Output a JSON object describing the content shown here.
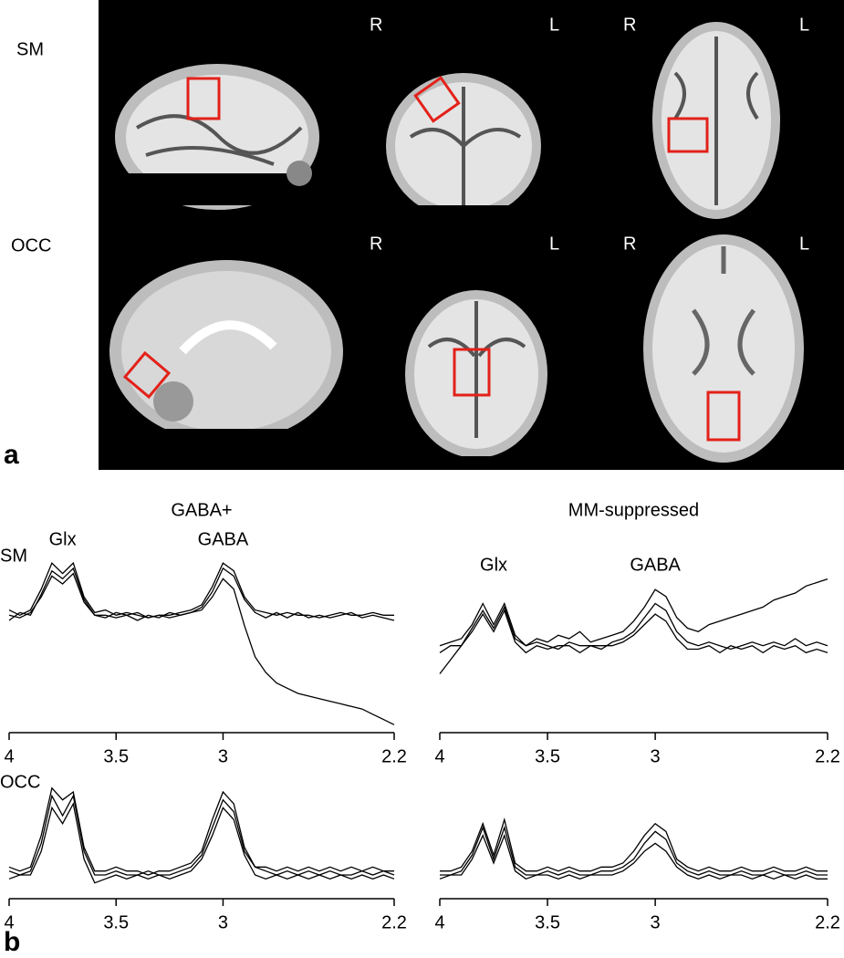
{
  "panel_a": {
    "label": "a",
    "rows": [
      "SM",
      "OCC"
    ],
    "images": [
      {},
      {
        "left": "R",
        "right": "L"
      },
      {
        "left": "R",
        "right": "L"
      },
      {},
      {
        "left": "R",
        "right": "L"
      },
      {
        "left": "R",
        "right": "L"
      }
    ]
  },
  "panel_b": {
    "label": "b",
    "rows": [
      "SM",
      "OCC"
    ]
  },
  "chart_data": [
    {
      "type": "line",
      "title": "GABA+",
      "annotations": [
        "Glx",
        "GABA"
      ],
      "x": [
        4,
        3.95,
        3.9,
        3.85,
        3.8,
        3.75,
        3.7,
        3.65,
        3.6,
        3.55,
        3.5,
        3.45,
        3.4,
        3.35,
        3.3,
        3.25,
        3.2,
        3.15,
        3.1,
        3.05,
        3,
        2.95,
        2.9,
        2.85,
        2.8,
        2.75,
        2.7,
        2.65,
        2.6,
        2.55,
        2.5,
        2.45,
        2.4,
        2.35,
        2.3,
        2.25,
        2.2
      ],
      "xlim": [
        4,
        2.2
      ],
      "xticks": [
        4,
        3.5,
        3,
        2.2
      ],
      "ylim": [
        -2.2,
        1.3
      ],
      "series": [
        {
          "color": "#000000",
          "values": [
            0.1,
            0.0,
            0.1,
            0.5,
            1.0,
            0.8,
            1.0,
            0.35,
            0.05,
            0.1,
            0.0,
            0.05,
            0.0,
            -0.05,
            0.0,
            0.0,
            0.05,
            0.1,
            0.2,
            0.55,
            1.0,
            0.85,
            0.35,
            0.1,
            0.05,
            0.0,
            0.05,
            0.0,
            0.0,
            -0.05,
            0.0,
            0.05,
            0.0,
            0.0,
            0.05,
            0.0,
            0.0
          ]
        },
        {
          "color": "#000000",
          "values": [
            -0.1,
            0.05,
            0.0,
            0.4,
            0.85,
            0.7,
            0.9,
            0.3,
            0.0,
            -0.05,
            0.05,
            0.0,
            -0.1,
            0.0,
            -0.05,
            0.05,
            0.0,
            0.05,
            0.15,
            0.45,
            0.9,
            0.75,
            0.3,
            0.05,
            -0.05,
            0.05,
            -0.05,
            0.05,
            -0.05,
            0.0,
            -0.05,
            0.0,
            0.05,
            -0.05,
            0.0,
            -0.05,
            -0.1
          ]
        },
        {
          "color": "#000000",
          "values": [
            0.0,
            -0.05,
            0.05,
            0.35,
            0.75,
            0.6,
            0.8,
            0.25,
            0.0,
            0.0,
            -0.05,
            0.0,
            0.05,
            -0.05,
            0.0,
            -0.05,
            0.0,
            0.05,
            0.1,
            0.35,
            0.7,
            0.5,
            -0.2,
            -0.8,
            -1.1,
            -1.3,
            -1.4,
            -1.5,
            -1.55,
            -1.6,
            -1.65,
            -1.7,
            -1.75,
            -1.8,
            -1.9,
            -2.0,
            -2.1
          ]
        }
      ]
    },
    {
      "type": "line",
      "title": "MM-suppressed",
      "annotations": [
        "Glx",
        "GABA"
      ],
      "x": [
        4,
        3.95,
        3.9,
        3.85,
        3.8,
        3.75,
        3.7,
        3.65,
        3.6,
        3.55,
        3.5,
        3.45,
        3.4,
        3.35,
        3.3,
        3.25,
        3.2,
        3.15,
        3.1,
        3.05,
        3,
        2.95,
        2.9,
        2.85,
        2.8,
        2.75,
        2.7,
        2.65,
        2.6,
        2.55,
        2.5,
        2.45,
        2.4,
        2.35,
        2.3,
        2.25,
        2.2
      ],
      "xlim": [
        4,
        2.2
      ],
      "xticks": [
        4,
        3.5,
        3,
        2.2
      ],
      "ylim": [
        -1.2,
        1.4
      ],
      "series": [
        {
          "color": "#000000",
          "values": [
            0.0,
            0.05,
            0.1,
            0.3,
            0.6,
            0.3,
            0.6,
            0.15,
            0.0,
            0.05,
            0.0,
            -0.05,
            0.05,
            0.0,
            0.0,
            -0.05,
            0.05,
            0.1,
            0.2,
            0.4,
            0.6,
            0.5,
            0.2,
            0.05,
            0.0,
            0.05,
            0.0,
            -0.05,
            0.0,
            0.05,
            0.0,
            0.05,
            0.0,
            0.1,
            0.0,
            0.05,
            0.0
          ]
        },
        {
          "color": "#000000",
          "values": [
            -0.1,
            0.0,
            0.0,
            0.2,
            0.45,
            0.2,
            0.5,
            0.05,
            -0.1,
            0.0,
            -0.05,
            0.0,
            0.0,
            -0.1,
            0.0,
            0.0,
            0.0,
            0.05,
            0.15,
            0.3,
            0.45,
            0.35,
            0.1,
            -0.05,
            -0.05,
            0.0,
            -0.1,
            0.0,
            -0.05,
            0.0,
            -0.1,
            0.0,
            -0.05,
            0.0,
            -0.1,
            -0.05,
            -0.1
          ]
        },
        {
          "color": "#000000",
          "values": [
            -0.4,
            -0.2,
            0.0,
            0.25,
            0.5,
            0.25,
            0.55,
            0.1,
            0.0,
            0.1,
            0.05,
            0.15,
            0.1,
            0.2,
            0.05,
            0.1,
            0.15,
            0.2,
            0.35,
            0.55,
            0.8,
            0.7,
            0.4,
            0.25,
            0.2,
            0.3,
            0.35,
            0.4,
            0.45,
            0.5,
            0.55,
            0.65,
            0.7,
            0.75,
            0.85,
            0.9,
            0.95
          ]
        }
      ]
    },
    {
      "type": "line",
      "x": [
        4,
        3.95,
        3.9,
        3.85,
        3.8,
        3.75,
        3.7,
        3.65,
        3.6,
        3.55,
        3.5,
        3.45,
        3.4,
        3.35,
        3.3,
        3.25,
        3.2,
        3.15,
        3.1,
        3.05,
        3,
        2.95,
        2.9,
        2.85,
        2.8,
        2.75,
        2.7,
        2.65,
        2.6,
        2.55,
        2.5,
        2.45,
        2.4,
        2.35,
        2.3,
        2.25,
        2.2
      ],
      "xlim": [
        4,
        2.2
      ],
      "xticks": [
        4,
        3.5,
        3,
        2.2
      ],
      "ylim": [
        -0.3,
        1.2
      ],
      "series": [
        {
          "color": "#000000",
          "values": [
            0.05,
            0.0,
            0.05,
            0.4,
            1.0,
            0.75,
            1.0,
            0.3,
            0.0,
            0.0,
            0.05,
            0.0,
            0.0,
            0.05,
            0.0,
            0.0,
            0.05,
            0.1,
            0.25,
            0.6,
            0.95,
            0.8,
            0.3,
            0.1,
            0.05,
            0.0,
            0.05,
            0.0,
            0.05,
            0.0,
            0.05,
            0.0,
            0.0,
            0.05,
            0.0,
            0.05,
            0.0
          ]
        },
        {
          "color": "#000000",
          "values": [
            -0.05,
            0.0,
            0.0,
            0.3,
            0.85,
            0.65,
            0.9,
            0.2,
            -0.1,
            -0.05,
            0.0,
            -0.05,
            0.0,
            -0.05,
            0.0,
            -0.05,
            0.0,
            0.05,
            0.2,
            0.5,
            0.85,
            0.7,
            0.25,
            0.0,
            -0.05,
            0.0,
            -0.05,
            0.0,
            -0.05,
            0.0,
            -0.05,
            0.0,
            -0.05,
            0.0,
            -0.05,
            0.0,
            -0.05
          ]
        },
        {
          "color": "#000000",
          "values": [
            0.1,
            0.05,
            0.1,
            0.5,
            1.1,
            0.95,
            1.05,
            0.35,
            0.05,
            0.05,
            0.1,
            0.05,
            0.05,
            0.0,
            0.05,
            0.05,
            0.1,
            0.15,
            0.3,
            0.7,
            1.05,
            0.9,
            0.35,
            0.1,
            0.1,
            0.05,
            0.1,
            0.05,
            0.1,
            0.05,
            0.1,
            0.05,
            0.1,
            0.05,
            0.1,
            0.05,
            0.05
          ]
        }
      ]
    },
    {
      "type": "line",
      "x": [
        4,
        3.95,
        3.9,
        3.85,
        3.8,
        3.75,
        3.7,
        3.65,
        3.6,
        3.55,
        3.5,
        3.45,
        3.4,
        3.35,
        3.3,
        3.25,
        3.2,
        3.15,
        3.1,
        3.05,
        3,
        2.95,
        2.9,
        2.85,
        2.8,
        2.75,
        2.7,
        2.65,
        2.6,
        2.55,
        2.5,
        2.45,
        2.4,
        2.35,
        2.3,
        2.25,
        2.2
      ],
      "xlim": [
        4,
        2.2
      ],
      "xticks": [
        4,
        3.5,
        3,
        2.2
      ],
      "ylim": [
        -0.3,
        1.2
      ],
      "series": [
        {
          "color": "#000000",
          "values": [
            0.0,
            0.0,
            0.05,
            0.25,
            0.6,
            0.2,
            0.6,
            0.1,
            0.0,
            0.0,
            0.05,
            0.0,
            0.05,
            0.0,
            0.0,
            0.05,
            0.05,
            0.1,
            0.2,
            0.4,
            0.55,
            0.45,
            0.15,
            0.05,
            0.0,
            0.05,
            0.0,
            0.0,
            0.05,
            0.0,
            0.0,
            0.05,
            0.0,
            0.0,
            0.05,
            0.0,
            0.0
          ]
        },
        {
          "color": "#000000",
          "values": [
            -0.05,
            0.0,
            0.0,
            0.2,
            0.5,
            0.15,
            0.5,
            0.05,
            -0.05,
            0.0,
            0.0,
            -0.05,
            0.0,
            -0.05,
            0.0,
            0.0,
            0.0,
            0.05,
            0.15,
            0.3,
            0.4,
            0.3,
            0.1,
            0.0,
            -0.05,
            0.0,
            -0.05,
            0.0,
            0.0,
            -0.05,
            0.0,
            -0.05,
            0.0,
            -0.05,
            0.0,
            -0.05,
            -0.05
          ]
        },
        {
          "color": "#000000",
          "values": [
            0.05,
            0.05,
            0.1,
            0.3,
            0.65,
            0.25,
            0.7,
            0.15,
            0.05,
            0.05,
            0.1,
            0.05,
            0.1,
            0.05,
            0.05,
            0.1,
            0.1,
            0.15,
            0.3,
            0.5,
            0.65,
            0.55,
            0.2,
            0.1,
            0.05,
            0.1,
            0.05,
            0.05,
            0.1,
            0.05,
            0.05,
            0.1,
            0.05,
            0.05,
            0.1,
            0.05,
            0.05
          ]
        }
      ]
    }
  ]
}
